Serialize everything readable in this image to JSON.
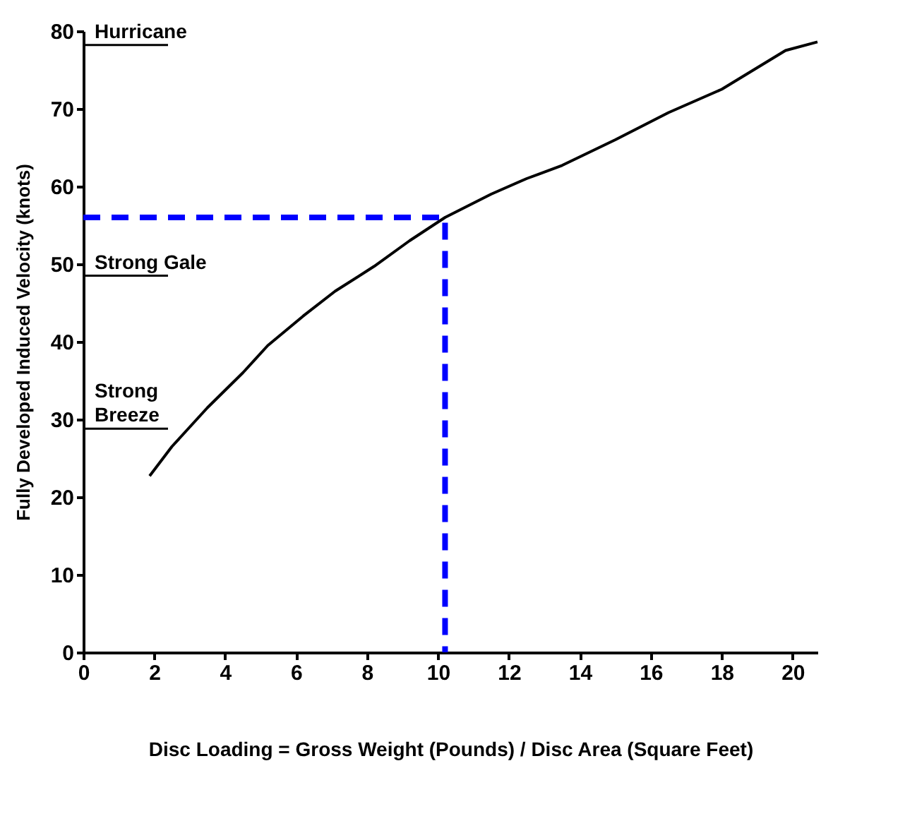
{
  "chart_data": {
    "type": "line",
    "xlabel": "Disc Loading = Gross Weight (Pounds) / Disc Area (Square Feet)",
    "ylabel": "Fully Developed Induced Velocity (knots)",
    "xlim": [
      0,
      20.7
    ],
    "ylim": [
      0,
      80
    ],
    "xticks": [
      0,
      2,
      4,
      6,
      8,
      10,
      12,
      14,
      16,
      18,
      20
    ],
    "yticks": [
      0,
      10,
      20,
      30,
      40,
      50,
      60,
      70,
      80
    ],
    "grid": false,
    "marker": "none",
    "series": [
      {
        "color": "#000000",
        "line_style": "solid",
        "x": [
          1.87,
          2.5,
          3.5,
          4.5,
          5.2,
          6.2,
          7.1,
          8.2,
          9.2,
          10.2,
          11.5,
          12.5,
          13.5,
          15,
          16.5,
          18,
          19.8,
          20.7
        ],
        "values": [
          22.7,
          26.5,
          31.5,
          36,
          39.5,
          43.3,
          46.5,
          49.7,
          53,
          56,
          59,
          61,
          62.7,
          66,
          69.5,
          72.5,
          77.5,
          78.6
        ]
      },
      {
        "color": "#0000ff",
        "line_style": "dashed",
        "x": [
          0,
          10.2,
          10.2
        ],
        "values": [
          56,
          56,
          0
        ]
      }
    ],
    "ref_lines": [
      {
        "axis": "y",
        "value": 78.2,
        "label": "Hurricane"
      },
      {
        "axis": "y",
        "value": 48.5,
        "label": "Strong Gale"
      },
      {
        "axis": "y",
        "value": 28.8,
        "label": "Strong Breeze"
      }
    ]
  }
}
